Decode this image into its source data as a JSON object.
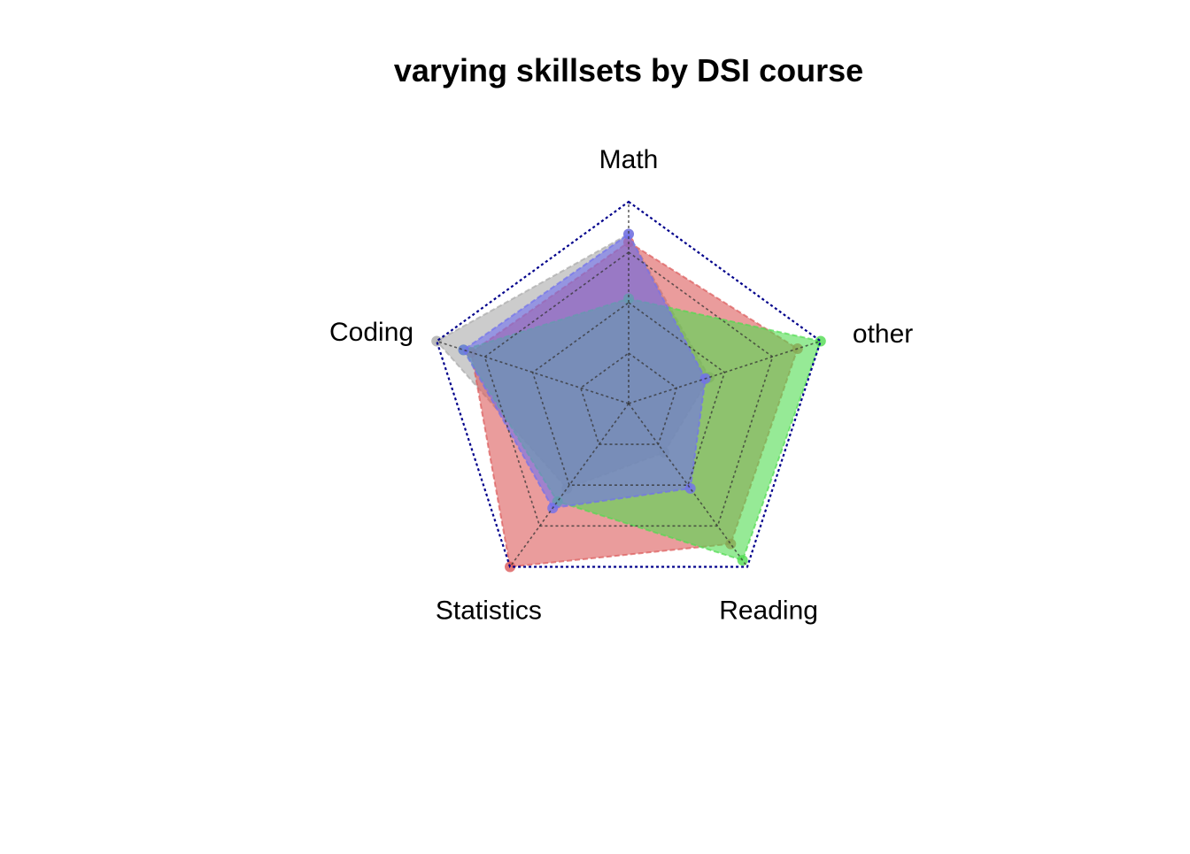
{
  "chart_data": {
    "type": "radar",
    "title": "varying skillsets by DSI course",
    "axes": [
      "Math",
      "other",
      "Reading",
      "Statistics",
      "Coding"
    ],
    "range": [
      0,
      5
    ],
    "grid_levels": 4,
    "grid_color": "#333333",
    "outer_ring_color": "#00008b",
    "legend": "none",
    "series": [
      {
        "color": "#aaaaaa",
        "values": [
          4.2,
          2.1,
          1.5,
          2.6,
          5.0
        ]
      },
      {
        "color": "#dc5a5a",
        "values": [
          4.0,
          4.4,
          4.3,
          5.0,
          4.1
        ]
      },
      {
        "color": "#50dc50",
        "values": [
          2.6,
          5.0,
          4.8,
          3.0,
          4.3
        ]
      },
      {
        "color": "#7070ee",
        "values": [
          4.2,
          2.0,
          2.6,
          3.2,
          4.3
        ]
      }
    ]
  }
}
